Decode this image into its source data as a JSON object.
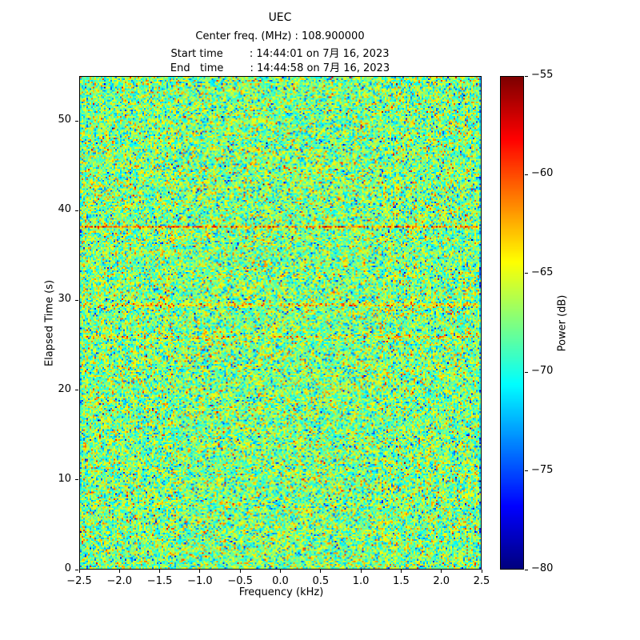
{
  "figure": {
    "title": "UEC",
    "center_freq_line": "Center freq. (MHz) : 108.900000",
    "start_time_line": "Start time        : 14:44:01 on 7月 16, 2023",
    "end_time_line": "End   time        : 14:44:58 on 7月 16, 2023"
  },
  "chart_data": {
    "type": "heatmap",
    "title": "UEC",
    "subtitle_lines": [
      "Center freq. (MHz) : 108.900000",
      "Start time : 14:44:01 on 7月 16, 2023",
      "End time : 14:44:58 on 7月 16, 2023"
    ],
    "xlabel": "Frequency (kHz)",
    "ylabel": "Elapsed Time (s)",
    "colorbar_label": "Power (dB)",
    "colormap": "jet",
    "xlim": [
      -2.5,
      2.5
    ],
    "ylim": [
      0,
      55
    ],
    "clim": [
      -80,
      -55
    ],
    "x_tick_values": [
      -2.5,
      -2.0,
      -1.5,
      -1.0,
      -0.5,
      0.0,
      0.5,
      1.0,
      1.5,
      2.0,
      2.5
    ],
    "x_tick_labels": [
      "−2.5",
      "−2.0",
      "−1.5",
      "−1.0",
      "−0.5",
      "0.0",
      "0.5",
      "1.0",
      "1.5",
      "2.0",
      "2.5"
    ],
    "y_tick_values": [
      0,
      10,
      20,
      30,
      40,
      50
    ],
    "y_tick_labels": [
      "0",
      "10",
      "20",
      "30",
      "40",
      "50"
    ],
    "colorbar_tick_values": [
      -55,
      -60,
      -65,
      -70,
      -75,
      -80
    ],
    "colorbar_tick_labels": [
      "−55",
      "−60",
      "−65",
      "−70",
      "−75",
      "−80"
    ],
    "noise_mean_db": -67.5,
    "noise_std_db": 3.1,
    "interference_lines": [
      {
        "elapsed_s": 38.2,
        "boost_db": 6.0
      },
      {
        "elapsed_s": 29.5,
        "boost_db": 4.5
      },
      {
        "elapsed_s": 25.9,
        "boost_db": 3.0
      }
    ],
    "grid": {
      "cols": 250,
      "rows": 300
    },
    "seed": 7
  }
}
